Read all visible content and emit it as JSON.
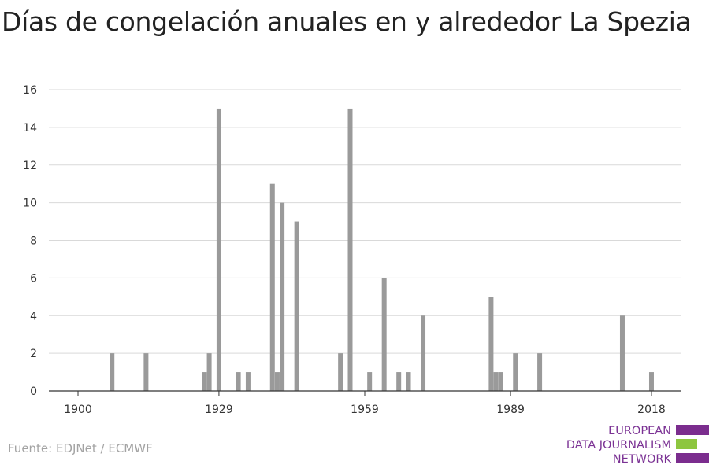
{
  "title": "Días de congelación anuales en y alrededor La Spezia",
  "source": "Fuente: EDJNet / ECMWF",
  "logo": {
    "line1": "EUROPEAN",
    "line2": "DATA JOURNALISM",
    "line3": "NETWORK",
    "colors": {
      "purple": "#7b2d8e",
      "green": "#8dc63f"
    }
  },
  "chart_data": {
    "type": "bar",
    "title": "Días de congelación anuales en y alrededor La Spezia",
    "xlabel": "",
    "ylabel": "",
    "x_ticks": [
      1900,
      1929,
      1959,
      1989,
      2018
    ],
    "y_ticks": [
      0,
      2,
      4,
      6,
      8,
      10,
      12,
      14,
      16
    ],
    "xlim": [
      1894,
      2024
    ],
    "ylim": [
      0,
      16
    ],
    "grid": true,
    "bar_color": "#9a9a9a",
    "values": [
      {
        "year": 1907,
        "value": 2
      },
      {
        "year": 1914,
        "value": 2
      },
      {
        "year": 1926,
        "value": 1
      },
      {
        "year": 1927,
        "value": 2
      },
      {
        "year": 1929,
        "value": 15
      },
      {
        "year": 1933,
        "value": 1
      },
      {
        "year": 1935,
        "value": 1
      },
      {
        "year": 1940,
        "value": 11
      },
      {
        "year": 1941,
        "value": 1
      },
      {
        "year": 1942,
        "value": 10
      },
      {
        "year": 1945,
        "value": 9
      },
      {
        "year": 1954,
        "value": 2
      },
      {
        "year": 1956,
        "value": 15
      },
      {
        "year": 1960,
        "value": 1
      },
      {
        "year": 1963,
        "value": 6
      },
      {
        "year": 1966,
        "value": 1
      },
      {
        "year": 1968,
        "value": 1
      },
      {
        "year": 1971,
        "value": 4
      },
      {
        "year": 1985,
        "value": 5
      },
      {
        "year": 1986,
        "value": 1
      },
      {
        "year": 1987,
        "value": 1
      },
      {
        "year": 1990,
        "value": 2
      },
      {
        "year": 1995,
        "value": 2
      },
      {
        "year": 2012,
        "value": 4
      },
      {
        "year": 2018,
        "value": 1
      }
    ]
  }
}
